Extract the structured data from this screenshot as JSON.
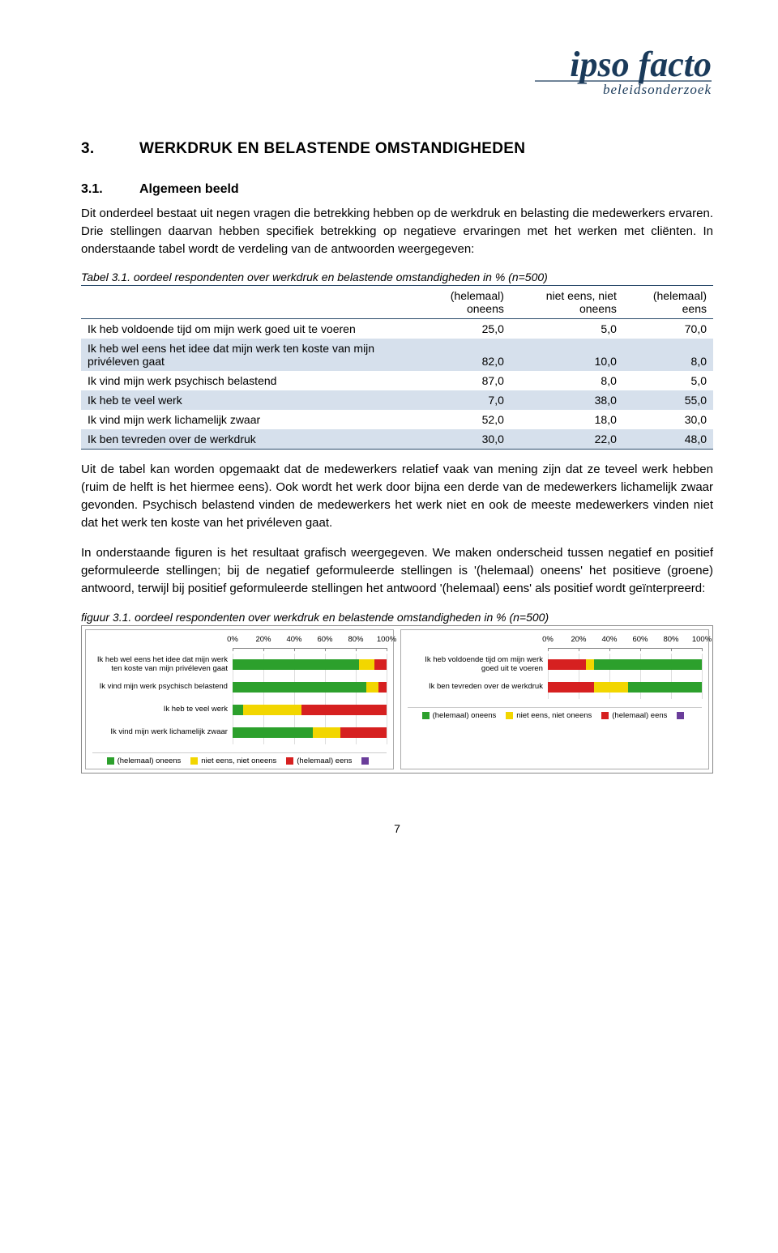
{
  "logo": {
    "main": "ipso facto",
    "sub": "beleidsonderzoek",
    "color": "#1a3a5a"
  },
  "h1": {
    "num": "3.",
    "text": "WERKDRUK EN BELASTENDE OMSTANDIGHEDEN"
  },
  "h2": {
    "num": "3.1.",
    "text": "Algemeen beeld"
  },
  "p1": "Dit onderdeel bestaat uit negen vragen die betrekking hebben op de werkdruk en belasting die medewerkers ervaren. Drie stellingen daarvan hebben specifiek betrekking op negatieve ervaringen met het werken met cliënten. In onderstaande tabel wordt de verdeling van de antwoorden weergegeven:",
  "table": {
    "caption": "Tabel 3.1. oordeel respondenten over werkdruk en belastende omstandigheden in % (n=500)",
    "columns": [
      "",
      "(helemaal) oneens",
      "niet eens, niet oneens",
      "(helemaal) eens"
    ],
    "rows": [
      {
        "label": "Ik heb voldoende tijd om mijn werk goed uit te voeren",
        "v": [
          "25,0",
          "5,0",
          "70,0"
        ],
        "stripe": false
      },
      {
        "label": "Ik heb wel eens het idee dat mijn werk ten koste van mijn privéleven gaat",
        "v": [
          "82,0",
          "10,0",
          "8,0"
        ],
        "stripe": true
      },
      {
        "label": "Ik vind mijn werk psychisch belastend",
        "v": [
          "87,0",
          "8,0",
          "5,0"
        ],
        "stripe": false
      },
      {
        "label": "Ik heb te veel werk",
        "v": [
          "7,0",
          "38,0",
          "55,0"
        ],
        "stripe": true
      },
      {
        "label": "Ik vind mijn werk lichamelijk zwaar",
        "v": [
          "52,0",
          "18,0",
          "30,0"
        ],
        "stripe": false
      },
      {
        "label": "Ik ben tevreden over de werkdruk",
        "v": [
          "30,0",
          "22,0",
          "48,0"
        ],
        "stripe": true
      }
    ]
  },
  "p2": "Uit de tabel kan worden opgemaakt dat de medewerkers relatief vaak van mening zijn dat ze teveel werk hebben (ruim de helft is het hiermee eens). Ook wordt het werk door bijna een derde van de medewerkers lichamelijk zwaar gevonden. Psychisch belastend vinden de medewerkers het werk niet en ook de meeste medewerkers vinden niet dat het werk ten koste van het privéleven gaat.",
  "p3": "In onderstaande figuren is het resultaat grafisch weergegeven. We maken onderscheid tussen negatief en positief geformuleerde stellingen; bij de negatief geformuleerde stellingen is '(helemaal) oneens' het positieve (groene) antwoord, terwijl bij positief geformuleerde stellingen het antwoord '(helemaal) eens' als positief wordt geïnterpreerd:",
  "figcaption": "figuur 3.1. oordeel respondenten over werkdruk en belastende omstandigheden in % (n=500)",
  "colors": {
    "green": "#2ca02c",
    "yellow": "#f2d600",
    "red": "#d62020",
    "purple": "#6a3d9a",
    "grid": "#dddddd",
    "axis": "#888888"
  },
  "xticks": [
    0,
    20,
    40,
    60,
    80,
    100
  ],
  "chart_left": {
    "items": [
      {
        "label": "Ik heb wel eens het idee dat mijn werk ten koste van mijn privéleven gaat",
        "segs": [
          {
            "c": "green",
            "w": 82
          },
          {
            "c": "yellow",
            "w": 10
          },
          {
            "c": "red",
            "w": 8
          }
        ]
      },
      {
        "label": "Ik vind mijn werk psychisch belastend",
        "segs": [
          {
            "c": "green",
            "w": 87
          },
          {
            "c": "yellow",
            "w": 8
          },
          {
            "c": "red",
            "w": 5
          }
        ]
      },
      {
        "label": "Ik heb te veel werk",
        "segs": [
          {
            "c": "green",
            "w": 7
          },
          {
            "c": "yellow",
            "w": 38
          },
          {
            "c": "red",
            "w": 55
          }
        ]
      },
      {
        "label": "Ik vind mijn werk lichamelijk zwaar",
        "segs": [
          {
            "c": "green",
            "w": 52
          },
          {
            "c": "yellow",
            "w": 18
          },
          {
            "c": "red",
            "w": 30
          }
        ]
      }
    ]
  },
  "chart_right": {
    "items": [
      {
        "label": "Ik heb voldoende tijd om mijn werk goed uit te voeren",
        "segs": [
          {
            "c": "red",
            "w": 25
          },
          {
            "c": "yellow",
            "w": 5
          },
          {
            "c": "green",
            "w": 70
          }
        ]
      },
      {
        "label": "Ik ben tevreden over de werkdruk",
        "segs": [
          {
            "c": "red",
            "w": 30
          },
          {
            "c": "yellow",
            "w": 22
          },
          {
            "c": "green",
            "w": 48
          }
        ]
      }
    ]
  },
  "legend": [
    {
      "c": "green",
      "label": "(helemaal) oneens"
    },
    {
      "c": "yellow",
      "label": "niet eens, niet oneens"
    },
    {
      "c": "red",
      "label": "(helemaal) eens"
    },
    {
      "c": "purple",
      "label": ""
    }
  ],
  "pagenum": "7"
}
